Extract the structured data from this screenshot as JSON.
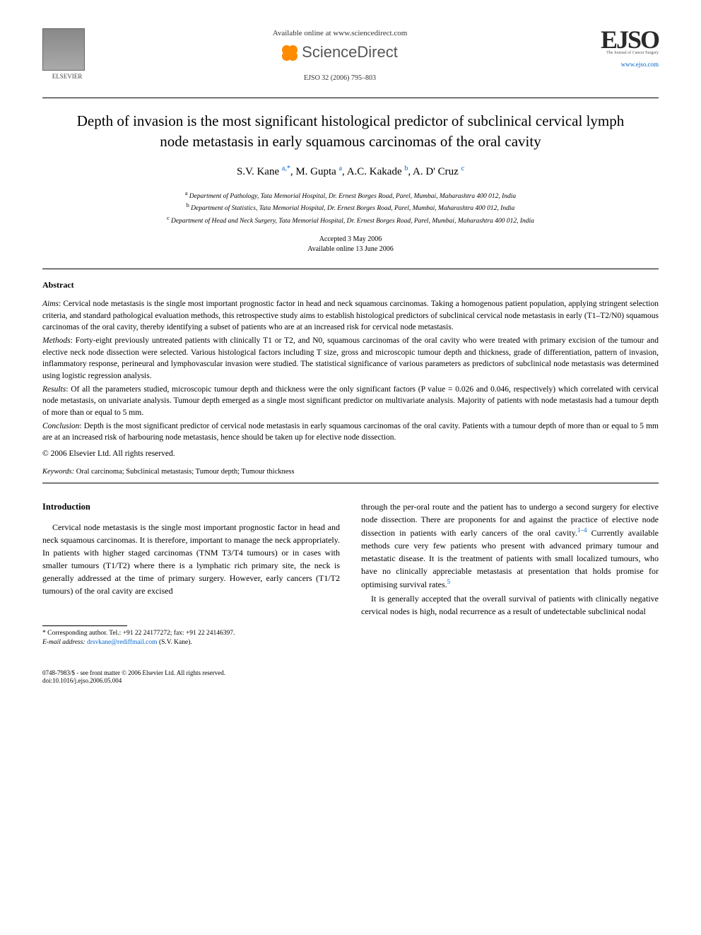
{
  "header": {
    "publisher_name": "ELSEVIER",
    "available_text": "Available online at www.sciencedirect.com",
    "sd_brand": "ScienceDirect",
    "citation": "EJSO 32 (2006) 795–803",
    "journal_abbrev": "EJSO",
    "journal_sub1": "The Journal of Cancer Surgery",
    "journal_link": "www.ejso.com"
  },
  "article": {
    "title": "Depth of invasion is the most significant histological predictor of subclinical cervical lymph node metastasis in early squamous carcinomas of the oral cavity",
    "authors_html": "S.V. Kane <sup>a,*</sup>, M. Gupta <sup>a</sup>, A.C. Kakade <sup>b</sup>, A. D' Cruz <sup>c</sup>",
    "affiliations": [
      {
        "marker": "a",
        "text": "Department of Pathology, Tata Memorial Hospital, Dr. Ernest Borges Road, Parel, Mumbai, Maharashtra 400 012, India"
      },
      {
        "marker": "b",
        "text": "Department of Statistics, Tata Memorial Hospital, Dr. Ernest Borges Road, Parel, Mumbai, Maharashtra 400 012, India"
      },
      {
        "marker": "c",
        "text": "Department of Head and Neck Surgery, Tata Memorial Hospital, Dr. Ernest Borges Road, Parel, Mumbai, Maharashtra 400 012, India"
      }
    ],
    "accepted": "Accepted 3 May 2006",
    "online": "Available online 13 June 2006"
  },
  "abstract": {
    "label": "Abstract",
    "aims_label": "Aims",
    "aims": "Cervical node metastasis is the single most important prognostic factor in head and neck squamous carcinomas. Taking a homogenous patient population, applying stringent selection criteria, and standard pathological evaluation methods, this retrospective study aims to establish histological predictors of subclinical cervical node metastasis in early (T1–T2/N0) squamous carcinomas of the oral cavity, thereby identifying a subset of patients who are at an increased risk for cervical node metastasis.",
    "methods_label": "Methods",
    "methods": "Forty-eight previously untreated patients with clinically T1 or T2, and N0, squamous carcinomas of the oral cavity who were treated with primary excision of the tumour and elective neck node dissection were selected. Various histological factors including T size, gross and microscopic tumour depth and thickness, grade of differentiation, pattern of invasion, inflammatory response, perineural and lymphovascular invasion were studied. The statistical significance of various parameters as predictors of subclinical node metastasis was determined using logistic regression analysis.",
    "results_label": "Results",
    "results": "Of all the parameters studied, microscopic tumour depth and thickness were the only significant factors (P value = 0.026 and 0.046, respectively) which correlated with cervical node metastasis, on univariate analysis. Tumour depth emerged as a single most significant predictor on multivariate analysis. Majority of patients with node metastasis had a tumour depth of more than or equal to 5 mm.",
    "conclusion_label": "Conclusion",
    "conclusion": "Depth is the most significant predictor of cervical node metastasis in early squamous carcinomas of the oral cavity. Patients with a tumour depth of more than or equal to 5 mm are at an increased risk of harbouring node metastasis, hence should be taken up for elective node dissection.",
    "copyright": "© 2006 Elsevier Ltd. All rights reserved."
  },
  "keywords": {
    "label": "Keywords:",
    "text": "Oral carcinoma; Subclinical metastasis; Tumour depth; Tumour thickness"
  },
  "body": {
    "intro_heading": "Introduction",
    "col1_p1": "Cervical node metastasis is the single most important prognostic factor in head and neck squamous carcinomas. It is therefore, important to manage the neck appropriately. In patients with higher staged carcinomas (TNM T3/T4 tumours) or in cases with smaller tumours (T1/T2) where there is a lymphatic rich primary site, the neck is generally addressed at the time of primary surgery. However, early cancers (T1/T2 tumours) of the oral cavity are excised",
    "col2_p1_a": "through the per-oral route and the patient has to undergo a second surgery for elective node dissection. There are proponents for and against the practice of elective node dissection in patients with early cancers of the oral cavity.",
    "col2_p1_ref1": "1–4",
    "col2_p1_b": " Currently available methods cure very few patients who present with advanced primary tumour and metastatic disease. It is the treatment of patients with small localized tumours, who have no clinically appreciable metastasis at presentation that holds promise for optimising survival rates.",
    "col2_p1_ref2": "5",
    "col2_p2": "It is generally accepted that the overall survival of patients with clinically negative cervical nodes is high, nodal recurrence as a result of undetectable subclinical nodal"
  },
  "footnote": {
    "corr_label": "* Corresponding author. Tel.: +91 22 24177272; fax: +91 22 24146397.",
    "email_label": "E-mail address:",
    "email": "drsvkane@rediffmail.com",
    "email_suffix": "(S.V. Kane)."
  },
  "footer": {
    "issn_line": "0748-7983/$ - see front matter © 2006 Elsevier Ltd. All rights reserved.",
    "doi_line": "doi:10.1016/j.ejso.2006.05.004"
  },
  "colors": {
    "link": "#0066cc",
    "text": "#000000",
    "bg": "#ffffff"
  }
}
